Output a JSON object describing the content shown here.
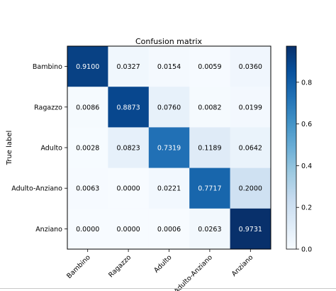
{
  "chart_data": {
    "type": "heatmap",
    "title": "Confusion matrix",
    "ylabel": "True label",
    "xlabel": "",
    "x_categories": [
      "Bambino",
      "Ragazzo",
      "Adulto",
      "Adulto-Anziano",
      "Anziano"
    ],
    "y_categories": [
      "Bambino",
      "Ragazzo",
      "Adulto",
      "Adulto-Anziano",
      "Anziano"
    ],
    "matrix": [
      [
        "0.9100",
        "0.0327",
        "0.0154",
        "0.0059",
        "0.0360"
      ],
      [
        "0.0086",
        "0.8873",
        "0.0760",
        "0.0082",
        "0.0199"
      ],
      [
        "0.0028",
        "0.0823",
        "0.7319",
        "0.1189",
        "0.0642"
      ],
      [
        "0.0063",
        "0.0000",
        "0.0221",
        "0.7717",
        "0.2000"
      ],
      [
        "0.0000",
        "0.0000",
        "0.0006",
        "0.0263",
        "0.9731"
      ]
    ],
    "colorbar": {
      "range": [
        0,
        0.9731
      ],
      "ticks": [
        "0.0",
        "0.2",
        "0.4",
        "0.6",
        "0.8"
      ],
      "colormap": "Blues"
    },
    "grid": false,
    "legend": "colorbar-right"
  }
}
